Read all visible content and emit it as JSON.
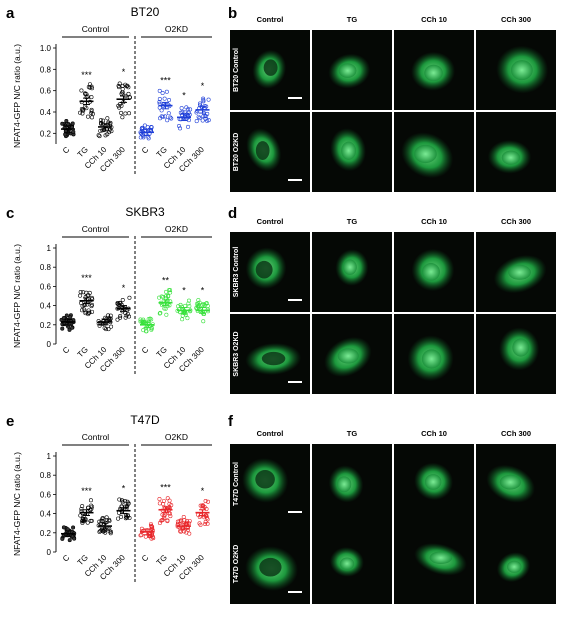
{
  "colors": {
    "bt20": "#1f3fd8",
    "skbr3": "#36e13a",
    "t47d": "#e8262a",
    "control": "#000000",
    "cell": "#22b84a"
  },
  "panels": [
    {
      "plot_label": "a",
      "images_label": "b",
      "title": "BT20",
      "ylabel": "NFAT4-GFP N/C ratio (a.u.)",
      "group_labels": [
        "Control",
        "O2KD"
      ],
      "categories": [
        "C",
        "TG",
        "CCh 10",
        "CCh 300"
      ],
      "color": "#1f3fd8",
      "yticks": [
        "0.2",
        "0.4",
        "0.6",
        "0.8",
        "1.0"
      ],
      "ylim": [
        0.1,
        1.0
      ],
      "control_means": [
        0.24,
        0.5,
        0.26,
        0.52
      ],
      "control_stars": [
        "",
        "***",
        "",
        "*"
      ],
      "o2kd_means": [
        0.21,
        0.46,
        0.35,
        0.42
      ],
      "o2kd_stars": [
        "",
        "***",
        "*",
        "*"
      ],
      "image_cols": [
        "Control",
        "TG",
        "CCh 10",
        "CCh 300"
      ],
      "image_rows": [
        "BT20 Control",
        "BT20 O2KD"
      ]
    },
    {
      "plot_label": "c",
      "images_label": "d",
      "title": "SKBR3",
      "ylabel": "NFAT4-GFP N/C ratio (a.u.)",
      "group_labels": [
        "Control",
        "O2KD"
      ],
      "categories": [
        "C",
        "TG",
        "CCh 10",
        "CCh 300"
      ],
      "color": "#36e13a",
      "yticks": [
        "0",
        "0.2",
        "0.4",
        "0.6",
        "0.8",
        "1"
      ],
      "ylim": [
        0,
        1.0
      ],
      "control_means": [
        0.23,
        0.45,
        0.23,
        0.37
      ],
      "control_stars": [
        "",
        "***",
        "",
        "*"
      ],
      "o2kd_means": [
        0.2,
        0.43,
        0.35,
        0.35
      ],
      "o2kd_stars": [
        "",
        "**",
        "*",
        "*"
      ],
      "image_cols": [
        "Control",
        "TG",
        "CCh 10",
        "CCh 300"
      ],
      "image_rows": [
        "SKBR3 Control",
        "SKBR3 O2KD"
      ]
    },
    {
      "plot_label": "e",
      "images_label": "f",
      "title": "T47D",
      "ylabel": "NFAT4-GFP N/C ratio (a.u.)",
      "group_labels": [
        "Control",
        "O2KD"
      ],
      "categories": [
        "C",
        "TG",
        "CCh 10",
        "CCh 300"
      ],
      "color": "#e8262a",
      "yticks": [
        "0",
        "0.2",
        "0.4",
        "0.6",
        "0.8",
        "1"
      ],
      "ylim": [
        0,
        1.0
      ],
      "control_means": [
        0.19,
        0.41,
        0.27,
        0.43
      ],
      "control_stars": [
        "",
        "***",
        "",
        "*"
      ],
      "o2kd_means": [
        0.21,
        0.44,
        0.27,
        0.41
      ],
      "o2kd_stars": [
        "",
        "***",
        "",
        "*"
      ],
      "image_cols": [
        "Control",
        "TG",
        "CCh 10",
        "CCh 300"
      ],
      "image_rows": [
        "T47D Control",
        "T47D O2KD"
      ]
    }
  ]
}
